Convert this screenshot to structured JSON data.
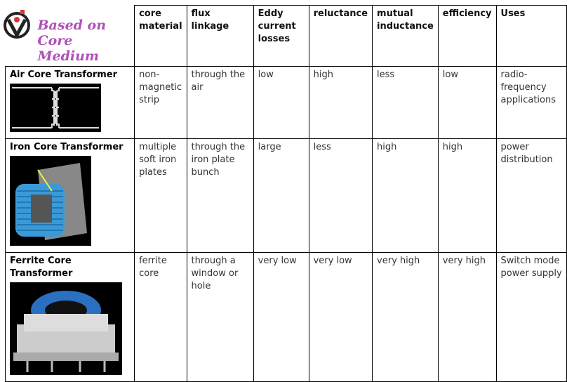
{
  "title_line1": "Based on",
  "title_line2": "Core Medium",
  "colors": {
    "title": "#b050b8",
    "border": "#000000"
  },
  "headers": [
    "core material",
    "flux linkage",
    "Eddy current losses",
    "reluctance",
    "mutual inductance",
    "efficiency",
    "Uses"
  ],
  "rows": [
    {
      "name": "Air Core Transformer",
      "cells": [
        "non-magnetic strip",
        "through the air",
        "low",
        "high",
        "less",
        "low",
        "radio-frequency applications"
      ]
    },
    {
      "name": "Iron Core Transformer",
      "cells": [
        "multiple soft iron plates",
        "through the iron plate bunch",
        "large",
        "less",
        "high",
        "high",
        "power distribution"
      ]
    },
    {
      "name": "Ferrite Core Transformer",
      "cells": [
        "ferrite core",
        "through a window or hole",
        "very low",
        "very low",
        "very high",
        "very high",
        "Switch mode power supply"
      ]
    }
  ]
}
